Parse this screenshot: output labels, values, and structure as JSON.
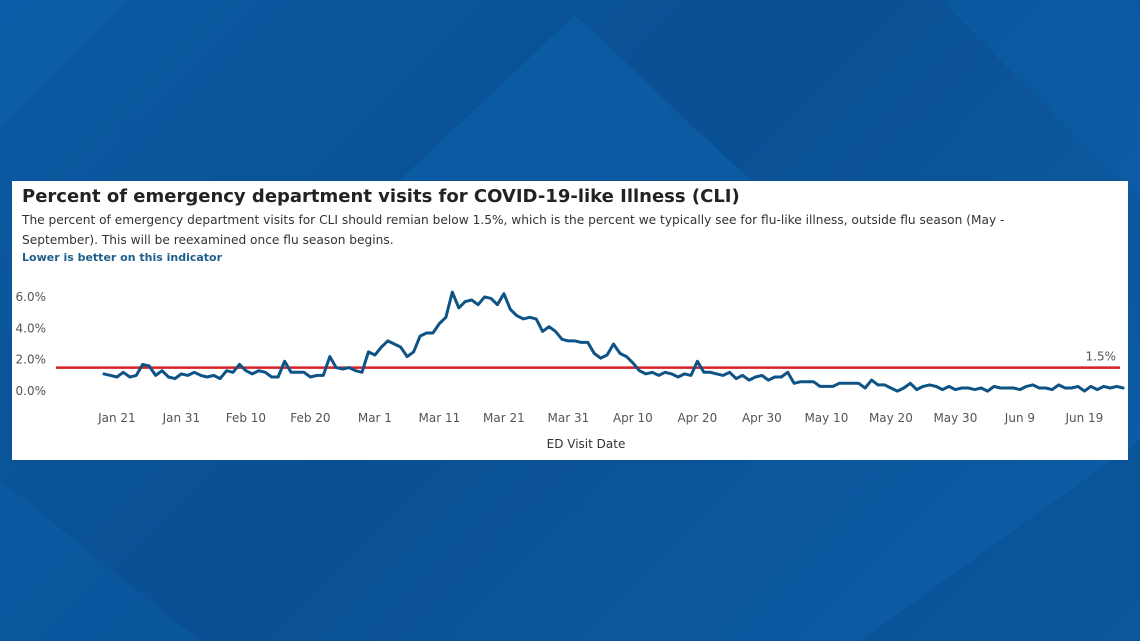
{
  "theme": {
    "background": "#0a4f93",
    "line_color": "#0e5385",
    "reference_color": "#d62027"
  },
  "chart_data": {
    "type": "line",
    "title": "Percent of emergency department visits for COVID-19-like Illness (CLI)",
    "subtitle": "The percent of emergency department visits for CLI should remian below 1.5%, which is the percent we typically see for flu-like illness, outside flu season (May - September). This will be reexamined once flu season begins.",
    "note": "Lower is better on this indicator",
    "xlabel": "ED Visit Date",
    "ylabel": "",
    "x_ticks": [
      "Jan 21",
      "Jan 31",
      "Feb 10",
      "Feb 20",
      "Mar 1",
      "Mar 11",
      "Mar 21",
      "Mar 31",
      "Apr 10",
      "Apr 20",
      "Apr 30",
      "May 10",
      "May 20",
      "May 30",
      "Jun 9",
      "Jun 19"
    ],
    "y_ticks": [
      "0.0%",
      "2.0%",
      "4.0%",
      "6.0%"
    ],
    "ylim": [
      -0.5,
      6.5
    ],
    "grid": false,
    "reference_line": {
      "value": 1.5,
      "label": "1.5%"
    },
    "series": [
      {
        "values": [
          1.1,
          1.0,
          0.9,
          1.2,
          0.9,
          1.0,
          1.7,
          1.6,
          1.0,
          1.3,
          0.9,
          0.8,
          1.1,
          1.0,
          1.2,
          1.0,
          0.9,
          1.0,
          0.8,
          1.3,
          1.2,
          1.7,
          1.3,
          1.1,
          1.3,
          1.2,
          0.9,
          0.9,
          1.9,
          1.2,
          1.2,
          1.2,
          0.9,
          1.0,
          1.0,
          2.2,
          1.5,
          1.4,
          1.5,
          1.3,
          1.2,
          2.5,
          2.3,
          2.8,
          3.2,
          3.0,
          2.8,
          2.2,
          2.5,
          3.5,
          3.7,
          3.7,
          4.3,
          4.7,
          6.3,
          5.3,
          5.7,
          5.8,
          5.5,
          6.0,
          5.9,
          5.5,
          6.2,
          5.2,
          4.8,
          4.6,
          4.7,
          4.6,
          3.8,
          4.1,
          3.8,
          3.3,
          3.2,
          3.2,
          3.1,
          3.1,
          2.4,
          2.1,
          2.3,
          3.0,
          2.4,
          2.2,
          1.8,
          1.3,
          1.1,
          1.2,
          1.0,
          1.2,
          1.1,
          0.9,
          1.1,
          1.0,
          1.9,
          1.2,
          1.2,
          1.1,
          1.0,
          1.2,
          0.8,
          1.0,
          0.7,
          0.9,
          1.0,
          0.7,
          0.9,
          0.9,
          1.2,
          0.5,
          0.6,
          0.6,
          0.6,
          0.3,
          0.3,
          0.3,
          0.5,
          0.5,
          0.5,
          0.5,
          0.2,
          0.7,
          0.4,
          0.4,
          0.2,
          0.0,
          0.2,
          0.5,
          0.1,
          0.3,
          0.4,
          0.3,
          0.1,
          0.3,
          0.1,
          0.2,
          0.2,
          0.1,
          0.2,
          0.0,
          0.3,
          0.2,
          0.2,
          0.2,
          0.1,
          0.3,
          0.4,
          0.2,
          0.2,
          0.1,
          0.4,
          0.2,
          0.2,
          0.3,
          0.0,
          0.3,
          0.1,
          0.3,
          0.2,
          0.3,
          0.2
        ]
      }
    ]
  }
}
